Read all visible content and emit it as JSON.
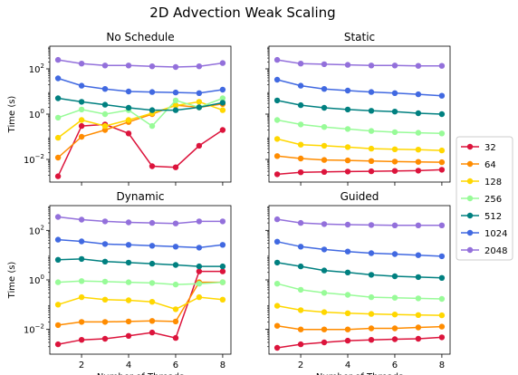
{
  "suptitle": "2D Advection Weak Scaling",
  "chart_data": {
    "type": "line",
    "x": [
      1,
      2,
      3,
      4,
      5,
      6,
      7,
      8
    ],
    "xlabel": "Number of Threads",
    "ylabel": "Time (s)",
    "yscale": "log",
    "ylim": [
      0.001,
      1000
    ],
    "xlim": [
      0.65,
      8.35
    ],
    "xticks": [
      "2",
      "4",
      "6",
      "8"
    ],
    "yticks": [
      "10^-2",
      "10^0",
      "10^2"
    ],
    "grid": false,
    "legend": {
      "placement": "right",
      "entries": [
        "32",
        "64",
        "128",
        "256",
        "512",
        "1024",
        "2048"
      ]
    },
    "colors": {
      "32": "#dc143c",
      "64": "#ff8c00",
      "128": "#ffd700",
      "256": "#98fb98",
      "512": "#008080",
      "1024": "#4169e1",
      "2048": "#9370db"
    },
    "panels": [
      {
        "title": "No Schedule",
        "series": [
          {
            "name": "32",
            "values": [
              0.0018,
              0.3,
              0.35,
              0.14,
              0.005,
              0.0045,
              0.04,
              0.2
            ]
          },
          {
            "name": "64",
            "values": [
              0.012,
              0.1,
              0.2,
              0.45,
              1.0,
              2.5,
              2.0,
              2.8
            ]
          },
          {
            "name": "128",
            "values": [
              0.09,
              0.55,
              0.3,
              0.55,
              1.1,
              2.4,
              3.5,
              1.5
            ]
          },
          {
            "name": "256",
            "values": [
              0.7,
              1.6,
              1.0,
              1.5,
              0.3,
              4.0,
              2.0,
              5.0
            ]
          },
          {
            "name": "512",
            "values": [
              5.0,
              3.5,
              2.6,
              1.9,
              1.5,
              1.5,
              2.0,
              3.2
            ]
          },
          {
            "name": "1024",
            "values": [
              38,
              18,
              13,
              10,
              9.5,
              9.0,
              8.5,
              12
            ]
          },
          {
            "name": "2048",
            "values": [
              250,
              170,
              140,
              140,
              130,
              120,
              130,
              180
            ]
          }
        ]
      },
      {
        "title": "Static",
        "series": [
          {
            "name": "32",
            "values": [
              0.0022,
              0.0027,
              0.0028,
              0.0029,
              0.003,
              0.0031,
              0.0032,
              0.0035
            ]
          },
          {
            "name": "64",
            "values": [
              0.014,
              0.011,
              0.0095,
              0.009,
              0.0085,
              0.008,
              0.0078,
              0.0075
            ]
          },
          {
            "name": "128",
            "values": [
              0.08,
              0.045,
              0.04,
              0.035,
              0.03,
              0.028,
              0.027,
              0.025
            ]
          },
          {
            "name": "256",
            "values": [
              0.55,
              0.35,
              0.27,
              0.22,
              0.18,
              0.16,
              0.15,
              0.14
            ]
          },
          {
            "name": "512",
            "values": [
              4.0,
              2.5,
              1.9,
              1.6,
              1.4,
              1.3,
              1.1,
              1.0
            ]
          },
          {
            "name": "1024",
            "values": [
              33,
              18,
              13,
              11,
              9.5,
              8.5,
              7.5,
              6.5
            ]
          },
          {
            "name": "2048",
            "values": [
              250,
              170,
              160,
              150,
              140,
              140,
              135,
              135
            ]
          }
        ]
      },
      {
        "title": "Dynamic",
        "series": [
          {
            "name": "32",
            "values": [
              0.0025,
              0.0038,
              0.0042,
              0.0055,
              0.0075,
              0.0045,
              2.2,
              2.2
            ]
          },
          {
            "name": "64",
            "values": [
              0.015,
              0.02,
              0.02,
              0.021,
              0.022,
              0.021,
              0.8,
              0.8
            ]
          },
          {
            "name": "128",
            "values": [
              0.1,
              0.2,
              0.16,
              0.15,
              0.13,
              0.065,
              0.2,
              0.16
            ]
          },
          {
            "name": "256",
            "values": [
              0.8,
              0.9,
              0.85,
              0.8,
              0.75,
              0.65,
              0.7,
              0.8
            ]
          },
          {
            "name": "512",
            "values": [
              6.5,
              7.0,
              5.5,
              5.0,
              4.5,
              4.0,
              3.5,
              3.5
            ]
          },
          {
            "name": "1024",
            "values": [
              42,
              36,
              28,
              26,
              24,
              22,
              20,
              26
            ]
          },
          {
            "name": "2048",
            "values": [
              350,
              270,
              230,
              210,
              200,
              190,
              230,
              230
            ]
          }
        ]
      },
      {
        "title": "Guided",
        "series": [
          {
            "name": "32",
            "values": [
              0.0018,
              0.0025,
              0.003,
              0.0035,
              0.0038,
              0.004,
              0.0042,
              0.0048
            ]
          },
          {
            "name": "64",
            "values": [
              0.014,
              0.01,
              0.01,
              0.01,
              0.011,
              0.011,
              0.012,
              0.013
            ]
          },
          {
            "name": "128",
            "values": [
              0.09,
              0.06,
              0.05,
              0.045,
              0.042,
              0.04,
              0.038,
              0.037
            ]
          },
          {
            "name": "256",
            "values": [
              0.7,
              0.4,
              0.3,
              0.25,
              0.2,
              0.19,
              0.18,
              0.17
            ]
          },
          {
            "name": "512",
            "values": [
              5.0,
              3.5,
              2.4,
              2.0,
              1.6,
              1.4,
              1.3,
              1.2
            ]
          },
          {
            "name": "1024",
            "values": [
              35,
              22,
              17,
              14,
              12,
              11,
              10,
              9.0
            ]
          },
          {
            "name": "2048",
            "values": [
              280,
              200,
              180,
              170,
              165,
              160,
              160,
              160
            ]
          }
        ]
      }
    ]
  }
}
